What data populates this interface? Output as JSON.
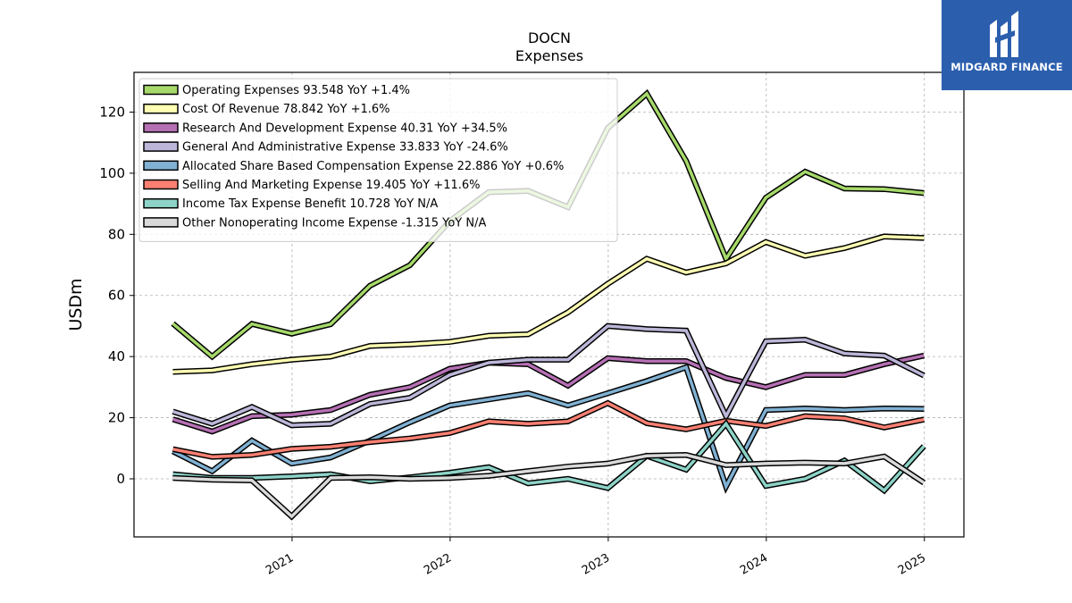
{
  "logo": {
    "name": "MIDGARD FINANCE",
    "bg_color": "#2b5fae"
  },
  "chart_data": {
    "type": "line",
    "title": "DOCN",
    "subtitle": "Expenses",
    "ylabel": "USDm",
    "xlabel": "",
    "ylim": [
      -19,
      133
    ],
    "xlim": [
      2020.0,
      2025.25
    ],
    "yticks": [
      0,
      20,
      40,
      60,
      80,
      100,
      120
    ],
    "xticks": [
      "2021",
      "2022",
      "2023",
      "2024",
      "2025"
    ],
    "grid": true,
    "legend_position": "top-left",
    "series": [
      {
        "name": "Operating Expenses",
        "legend": "Operating Expenses  93.548 YoY +1.4%",
        "color": "#a6d96a",
        "x": [
          "2020-03-31",
          "2020-06-30",
          "2020-09-30",
          "2020-12-31",
          "2021-03-31",
          "2021-06-30",
          "2021-09-30",
          "2021-12-31",
          "2022-03-31",
          "2022-06-30",
          "2022-09-30",
          "2022-12-31",
          "2023-03-31",
          "2023-06-30",
          "2023-09-30",
          "2023-12-31",
          "2024-03-31",
          "2024-06-30",
          "2024-09-30",
          "2024-12-31"
        ],
        "values": [
          50.8,
          40.0,
          50.7,
          47.5,
          50.6,
          63.2,
          69.9,
          84.3,
          93.8,
          94.2,
          88.9,
          114.8,
          126.0,
          104.0,
          72.0,
          92.0,
          100.5,
          95.0,
          94.8,
          93.5
        ]
      },
      {
        "name": "Cost Of Revenue",
        "legend": "Cost Of Revenue  78.842 YoY +1.6%",
        "color": "#ffffb3",
        "x": [
          "2020-03-31",
          "2020-06-30",
          "2020-09-30",
          "2020-12-31",
          "2021-03-31",
          "2021-06-30",
          "2021-09-30",
          "2021-12-31",
          "2022-03-31",
          "2022-06-30",
          "2022-09-30",
          "2022-12-31",
          "2023-03-31",
          "2023-06-30",
          "2023-09-30",
          "2023-12-31",
          "2024-03-31",
          "2024-06-30",
          "2024-09-30",
          "2024-12-31"
        ],
        "values": [
          35.0,
          35.5,
          37.5,
          39.0,
          40.0,
          43.5,
          44.0,
          44.8,
          46.8,
          47.3,
          54.5,
          63.8,
          72.0,
          67.5,
          70.5,
          77.5,
          73.0,
          75.5,
          79.3,
          78.8
        ]
      },
      {
        "name": "Research And Development Expense",
        "legend": "Research And Development Expense  40.31 YoY +34.5%",
        "color": "#b56fb3",
        "x": [
          "2020-03-31",
          "2020-06-30",
          "2020-09-30",
          "2020-12-31",
          "2021-03-31",
          "2021-06-30",
          "2021-09-30",
          "2021-12-31",
          "2022-03-31",
          "2022-06-30",
          "2022-09-30",
          "2022-12-31",
          "2023-03-31",
          "2023-06-30",
          "2023-09-30",
          "2023-12-31",
          "2024-03-31",
          "2024-06-30",
          "2024-09-30",
          "2024-12-31"
        ],
        "values": [
          19.5,
          15.5,
          20.5,
          21.0,
          22.5,
          27.5,
          30.0,
          36.0,
          38.0,
          37.5,
          30.5,
          39.5,
          38.5,
          38.5,
          33.0,
          30.0,
          34.0,
          34.0,
          37.5,
          40.3
        ]
      },
      {
        "name": "General And Administrative Expense",
        "legend": "General And Administrative Expense  33.833 YoY -24.6%",
        "color": "#bcb6d8",
        "x": [
          "2020-03-31",
          "2020-06-30",
          "2020-09-30",
          "2020-12-31",
          "2021-03-31",
          "2021-06-30",
          "2021-09-30",
          "2021-12-31",
          "2022-03-31",
          "2022-06-30",
          "2022-09-30",
          "2022-12-31",
          "2023-03-31",
          "2023-06-30",
          "2023-09-30",
          "2023-12-31",
          "2024-03-31",
          "2024-06-30",
          "2024-09-30",
          "2024-12-31"
        ],
        "values": [
          22.0,
          18.0,
          23.5,
          17.5,
          18.0,
          24.5,
          26.5,
          34.0,
          38.0,
          39.0,
          39.0,
          50.0,
          49.0,
          48.5,
          20.5,
          45.0,
          45.5,
          41.0,
          40.3,
          33.8
        ]
      },
      {
        "name": "Allocated Share Based Compensation Expense",
        "legend": "Allocated Share Based Compensation Expense  22.886 YoY +0.6%",
        "color": "#80b1d3",
        "x": [
          "2020-03-31",
          "2020-06-30",
          "2020-09-30",
          "2020-12-31",
          "2021-03-31",
          "2021-06-30",
          "2021-09-30",
          "2021-12-31",
          "2022-03-31",
          "2022-06-30",
          "2022-09-30",
          "2022-12-31",
          "2023-03-31",
          "2023-06-30",
          "2023-09-30",
          "2023-12-31",
          "2024-03-31",
          "2024-06-30",
          "2024-09-30",
          "2024-12-31"
        ],
        "values": [
          9.0,
          2.5,
          12.5,
          5.0,
          7.0,
          12.5,
          18.5,
          24.0,
          26.0,
          28.0,
          24.0,
          28.0,
          32.0,
          36.5,
          -2.5,
          22.5,
          23.0,
          22.5,
          23.0,
          22.9
        ]
      },
      {
        "name": "Selling And Marketing Expense",
        "legend": "Selling And Marketing Expense  19.405 YoY +11.6%",
        "color": "#fb8072",
        "x": [
          "2020-03-31",
          "2020-06-30",
          "2020-09-30",
          "2020-12-31",
          "2021-03-31",
          "2021-06-30",
          "2021-09-30",
          "2021-12-31",
          "2022-03-31",
          "2022-06-30",
          "2022-09-30",
          "2022-12-31",
          "2023-03-31",
          "2023-06-30",
          "2023-09-30",
          "2023-12-31",
          "2024-03-31",
          "2024-06-30",
          "2024-09-30",
          "2024-12-31"
        ],
        "values": [
          9.7,
          7.2,
          7.8,
          9.8,
          10.5,
          12.0,
          13.2,
          15.0,
          18.8,
          18.0,
          18.8,
          24.8,
          18.2,
          16.2,
          19.0,
          17.3,
          20.5,
          19.8,
          16.8,
          19.4
        ]
      },
      {
        "name": "Income Tax Expense Benefit",
        "legend": "Income Tax Expense Benefit  10.728 YoY N/A",
        "color": "#8dd3c7",
        "x": [
          "2020-03-31",
          "2020-06-30",
          "2020-09-30",
          "2020-12-31",
          "2021-03-31",
          "2021-06-30",
          "2021-09-30",
          "2021-12-31",
          "2022-03-31",
          "2022-06-30",
          "2022-09-30",
          "2022-12-31",
          "2023-03-31",
          "2023-06-30",
          "2023-09-30",
          "2023-12-31",
          "2024-03-31",
          "2024-06-30",
          "2024-09-30",
          "2024-12-31"
        ],
        "values": [
          1.5,
          0.3,
          0.3,
          0.8,
          1.5,
          -0.8,
          0.5,
          2.0,
          3.8,
          -1.5,
          0.0,
          -3.0,
          7.5,
          3.0,
          18.0,
          -2.3,
          0.0,
          6.0,
          -3.8,
          10.7
        ]
      },
      {
        "name": "Other Nonoperating Income Expense",
        "legend": "Other Nonoperating Income Expense  -1.315 YoY N/A",
        "color": "#d9d9d9",
        "x": [
          "2020-03-31",
          "2020-06-30",
          "2020-09-30",
          "2020-12-31",
          "2021-03-31",
          "2021-06-30",
          "2021-09-30",
          "2021-12-31",
          "2022-03-31",
          "2022-06-30",
          "2022-09-30",
          "2022-12-31",
          "2023-03-31",
          "2023-06-30",
          "2023-09-30",
          "2023-12-31",
          "2024-03-31",
          "2024-06-30",
          "2024-09-30",
          "2024-12-31"
        ],
        "values": [
          0.3,
          -0.3,
          -0.5,
          -12.3,
          0.3,
          0.5,
          0.0,
          0.3,
          1.0,
          2.5,
          4.0,
          5.0,
          7.5,
          7.8,
          4.5,
          5.0,
          5.3,
          5.0,
          7.3,
          -1.3
        ]
      }
    ]
  }
}
